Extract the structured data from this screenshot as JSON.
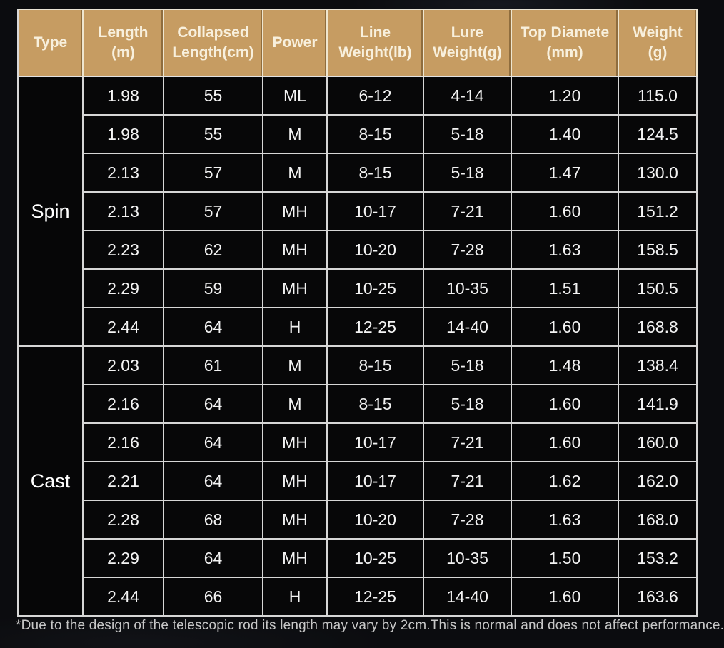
{
  "accent_color": "#c69c62",
  "grid_color": "#d6d6d6",
  "background_color": "#0b0c0f",
  "table": {
    "headers": [
      {
        "line1": "Type",
        "line2": ""
      },
      {
        "line1": "Length",
        "line2": "(m)"
      },
      {
        "line1": "Collapsed",
        "line2": "Length(cm)"
      },
      {
        "line1": "Power",
        "line2": ""
      },
      {
        "line1": "Line",
        "line2": "Weight(lb)"
      },
      {
        "line1": "Lure",
        "line2": "Weight(g)"
      },
      {
        "line1": "Top Diamete",
        "line2": "(mm)"
      },
      {
        "line1": "Weight",
        "line2": "(g)"
      }
    ],
    "groups": [
      {
        "label": "Spin",
        "rows": [
          [
            "1.98",
            "55",
            "ML",
            "6-12",
            "4-14",
            "1.20",
            "115.0"
          ],
          [
            "1.98",
            "55",
            "M",
            "8-15",
            "5-18",
            "1.40",
            "124.5"
          ],
          [
            "2.13",
            "57",
            "M",
            "8-15",
            "5-18",
            "1.47",
            "130.0"
          ],
          [
            "2.13",
            "57",
            "MH",
            "10-17",
            "7-21",
            "1.60",
            "151.2"
          ],
          [
            "2.23",
            "62",
            "MH",
            "10-20",
            "7-28",
            "1.63",
            "158.5"
          ],
          [
            "2.29",
            "59",
            "MH",
            "10-25",
            "10-35",
            "1.51",
            "150.5"
          ],
          [
            "2.44",
            "64",
            "H",
            "12-25",
            "14-40",
            "1.60",
            "168.8"
          ]
        ]
      },
      {
        "label": "Cast",
        "rows": [
          [
            "2.03",
            "61",
            "M",
            "8-15",
            "5-18",
            "1.48",
            "138.4"
          ],
          [
            "2.16",
            "64",
            "M",
            "8-15",
            "5-18",
            "1.60",
            "141.9"
          ],
          [
            "2.16",
            "64",
            "MH",
            "10-17",
            "7-21",
            "1.60",
            "160.0"
          ],
          [
            "2.21",
            "64",
            "MH",
            "10-17",
            "7-21",
            "1.62",
            "162.0"
          ],
          [
            "2.28",
            "68",
            "MH",
            "10-20",
            "7-28",
            "1.63",
            "168.0"
          ],
          [
            "2.29",
            "64",
            "MH",
            "10-25",
            "10-35",
            "1.50",
            "153.2"
          ],
          [
            "2.44",
            "66",
            "H",
            "12-25",
            "14-40",
            "1.60",
            "163.6"
          ]
        ]
      }
    ]
  },
  "footnote": "*Due to the design of the telescopic rod its length may vary by 2cm.This is normal and does not affect performance.",
  "chart_data": {
    "type": "table",
    "columns": [
      "Type",
      "Length (m)",
      "Collapsed Length(cm)",
      "Power",
      "Line Weight(lb)",
      "Lure Weight(g)",
      "Top Diamete (mm)",
      "Weight (g)"
    ],
    "rows": [
      [
        "Spin",
        "1.98",
        "55",
        "ML",
        "6-12",
        "4-14",
        "1.20",
        "115.0"
      ],
      [
        "Spin",
        "1.98",
        "55",
        "M",
        "8-15",
        "5-18",
        "1.40",
        "124.5"
      ],
      [
        "Spin",
        "2.13",
        "57",
        "M",
        "8-15",
        "5-18",
        "1.47",
        "130.0"
      ],
      [
        "Spin",
        "2.13",
        "57",
        "MH",
        "10-17",
        "7-21",
        "1.60",
        "151.2"
      ],
      [
        "Spin",
        "2.23",
        "62",
        "MH",
        "10-20",
        "7-28",
        "1.63",
        "158.5"
      ],
      [
        "Spin",
        "2.29",
        "59",
        "MH",
        "10-25",
        "10-35",
        "1.51",
        "150.5"
      ],
      [
        "Spin",
        "2.44",
        "64",
        "H",
        "12-25",
        "14-40",
        "1.60",
        "168.8"
      ],
      [
        "Cast",
        "2.03",
        "61",
        "M",
        "8-15",
        "5-18",
        "1.48",
        "138.4"
      ],
      [
        "Cast",
        "2.16",
        "64",
        "M",
        "8-15",
        "5-18",
        "1.60",
        "141.9"
      ],
      [
        "Cast",
        "2.16",
        "64",
        "MH",
        "10-17",
        "7-21",
        "1.60",
        "160.0"
      ],
      [
        "Cast",
        "2.21",
        "64",
        "MH",
        "10-17",
        "7-21",
        "1.62",
        "162.0"
      ],
      [
        "Cast",
        "2.28",
        "68",
        "MH",
        "10-20",
        "7-28",
        "1.63",
        "168.0"
      ],
      [
        "Cast",
        "2.29",
        "64",
        "MH",
        "10-25",
        "10-35",
        "1.50",
        "153.2"
      ],
      [
        "Cast",
        "2.44",
        "66",
        "H",
        "12-25",
        "14-40",
        "1.60",
        "163.6"
      ]
    ],
    "title": "",
    "legend": "none",
    "grid": "on"
  }
}
